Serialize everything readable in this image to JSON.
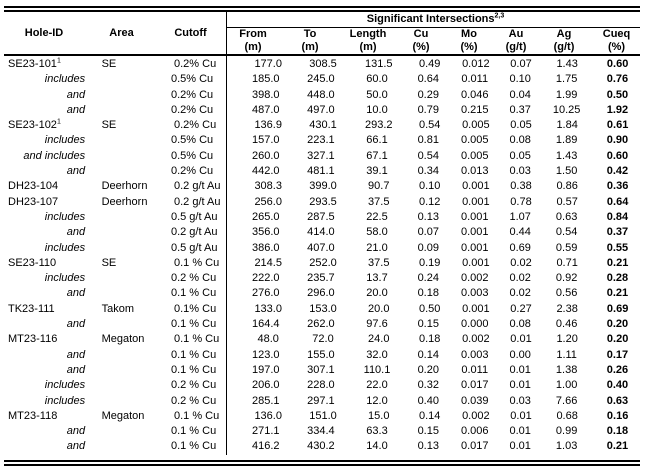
{
  "colors": {
    "text": "#000000",
    "background": "#ffffff",
    "rule": "#000000"
  },
  "table": {
    "spanner_title": "Significant Intersections",
    "spanner_superscript": "2,3",
    "left_columns": [
      "Hole-ID",
      "Area",
      "Cutoff"
    ],
    "right_columns": [
      {
        "label": "From",
        "unit": "(m)"
      },
      {
        "label": "To",
        "unit": "(m)"
      },
      {
        "label": "Length",
        "unit": "(m)"
      },
      {
        "label": "Cu",
        "unit": "(%)"
      },
      {
        "label": "Mo",
        "unit": "(%)"
      },
      {
        "label": "Au",
        "unit": "(g/t)"
      },
      {
        "label": "Ag",
        "unit": "(g/t)"
      },
      {
        "label": "Cueq",
        "unit": "(%)"
      }
    ],
    "rows": [
      {
        "hole_id": "SE23-101",
        "hole_sup": "1",
        "qualifier": "",
        "area": "SE",
        "cutoff": "0.2% Cu",
        "from": "177.0",
        "to": "308.5",
        "length": "131.5",
        "cu": "0.49",
        "mo": "0.012",
        "au": "0.07",
        "ag": "1.43",
        "cueq": "0.60"
      },
      {
        "hole_id": "",
        "hole_sup": "",
        "qualifier": "includes",
        "area": "",
        "cutoff": "0.5% Cu",
        "from": "185.0",
        "to": "245.0",
        "length": "60.0",
        "cu": "0.64",
        "mo": "0.011",
        "au": "0.10",
        "ag": "1.75",
        "cueq": "0.76"
      },
      {
        "hole_id": "",
        "hole_sup": "",
        "qualifier": "and",
        "area": "",
        "cutoff": "0.2% Cu",
        "from": "398.0",
        "to": "448.0",
        "length": "50.0",
        "cu": "0.29",
        "mo": "0.046",
        "au": "0.04",
        "ag": "1.99",
        "cueq": "0.50"
      },
      {
        "hole_id": "",
        "hole_sup": "",
        "qualifier": "and",
        "area": "",
        "cutoff": "0.2% Cu",
        "from": "487.0",
        "to": "497.0",
        "length": "10.0",
        "cu": "0.79",
        "mo": "0.215",
        "au": "0.37",
        "ag": "10.25",
        "cueq": "1.92"
      },
      {
        "hole_id": "SE23-102",
        "hole_sup": "1",
        "qualifier": "",
        "area": "SE",
        "cutoff": "0.2% Cu",
        "from": "136.9",
        "to": "430.1",
        "length": "293.2",
        "cu": "0.54",
        "mo": "0.005",
        "au": "0.05",
        "ag": "1.84",
        "cueq": "0.61"
      },
      {
        "hole_id": "",
        "hole_sup": "",
        "qualifier": "includes",
        "area": "",
        "cutoff": "0.5% Cu",
        "from": "157.0",
        "to": "223.1",
        "length": "66.1",
        "cu": "0.81",
        "mo": "0.005",
        "au": "0.08",
        "ag": "1.89",
        "cueq": "0.90"
      },
      {
        "hole_id": "",
        "hole_sup": "",
        "qualifier": "and includes",
        "area": "",
        "cutoff": "0.5% Cu",
        "from": "260.0",
        "to": "327.1",
        "length": "67.1",
        "cu": "0.54",
        "mo": "0.005",
        "au": "0.05",
        "ag": "1.43",
        "cueq": "0.60"
      },
      {
        "hole_id": "",
        "hole_sup": "",
        "qualifier": "and",
        "area": "",
        "cutoff": "0.2% Cu",
        "from": "442.0",
        "to": "481.1",
        "length": "39.1",
        "cu": "0.34",
        "mo": "0.013",
        "au": "0.03",
        "ag": "1.50",
        "cueq": "0.42"
      },
      {
        "hole_id": "DH23-104",
        "hole_sup": "",
        "qualifier": "",
        "area": "Deerhorn",
        "cutoff": "0.2 g/t Au",
        "from": "308.3",
        "to": "399.0",
        "length": "90.7",
        "cu": "0.10",
        "mo": "0.001",
        "au": "0.38",
        "ag": "0.86",
        "cueq": "0.36"
      },
      {
        "hole_id": "DH23-107",
        "hole_sup": "",
        "qualifier": "",
        "area": "Deerhorn",
        "cutoff": "0.2 g/t Au",
        "from": "256.0",
        "to": "293.5",
        "length": "37.5",
        "cu": "0.12",
        "mo": "0.001",
        "au": "0.78",
        "ag": "0.57",
        "cueq": "0.64"
      },
      {
        "hole_id": "",
        "hole_sup": "",
        "qualifier": "includes",
        "area": "",
        "cutoff": "0.5 g/t Au",
        "from": "265.0",
        "to": "287.5",
        "length": "22.5",
        "cu": "0.13",
        "mo": "0.001",
        "au": "1.07",
        "ag": "0.63",
        "cueq": "0.84"
      },
      {
        "hole_id": "",
        "hole_sup": "",
        "qualifier": "and",
        "area": "",
        "cutoff": "0.2 g/t Au",
        "from": "356.0",
        "to": "414.0",
        "length": "58.0",
        "cu": "0.07",
        "mo": "0.001",
        "au": "0.44",
        "ag": "0.54",
        "cueq": "0.37"
      },
      {
        "hole_id": "",
        "hole_sup": "",
        "qualifier": "includes",
        "area": "",
        "cutoff": "0.5 g/t Au",
        "from": "386.0",
        "to": "407.0",
        "length": "21.0",
        "cu": "0.09",
        "mo": "0.001",
        "au": "0.69",
        "ag": "0.59",
        "cueq": "0.55"
      },
      {
        "hole_id": "SE23-110",
        "hole_sup": "",
        "qualifier": "",
        "area": "SE",
        "cutoff": "0.1 % Cu",
        "from": "214.5",
        "to": "252.0",
        "length": "37.5",
        "cu": "0.19",
        "mo": "0.001",
        "au": "0.02",
        "ag": "0.71",
        "cueq": "0.21"
      },
      {
        "hole_id": "",
        "hole_sup": "",
        "qualifier": "includes",
        "area": "",
        "cutoff": "0.2 % Cu",
        "from": "222.0",
        "to": "235.7",
        "length": "13.7",
        "cu": "0.24",
        "mo": "0.002",
        "au": "0.02",
        "ag": "0.92",
        "cueq": "0.28"
      },
      {
        "hole_id": "",
        "hole_sup": "",
        "qualifier": "and",
        "area": "",
        "cutoff": "0.1 % Cu",
        "from": "276.0",
        "to": "296.0",
        "length": "20.0",
        "cu": "0.18",
        "mo": "0.003",
        "au": "0.02",
        "ag": "0.56",
        "cueq": "0.21"
      },
      {
        "hole_id": "TK23-111",
        "hole_sup": "",
        "qualifier": "",
        "area": "Takom",
        "cutoff": "0.1% Cu",
        "from": "133.0",
        "to": "153.0",
        "length": "20.0",
        "cu": "0.50",
        "mo": "0.001",
        "au": "0.27",
        "ag": "2.38",
        "cueq": "0.69"
      },
      {
        "hole_id": "",
        "hole_sup": "",
        "qualifier": "and",
        "area": "",
        "cutoff": "0.1 % Cu",
        "from": "164.4",
        "to": "262.0",
        "length": "97.6",
        "cu": "0.15",
        "mo": "0.000",
        "au": "0.08",
        "ag": "0.46",
        "cueq": "0.20"
      },
      {
        "hole_id": "MT23-116",
        "hole_sup": "",
        "qualifier": "",
        "area": "Megaton",
        "cutoff": "0.1 % Cu",
        "from": "48.0",
        "to": "72.0",
        "length": "24.0",
        "cu": "0.18",
        "mo": "0.002",
        "au": "0.01",
        "ag": "1.20",
        "cueq": "0.20"
      },
      {
        "hole_id": "",
        "hole_sup": "",
        "qualifier": "and",
        "area": "",
        "cutoff": "0.1 % Cu",
        "from": "123.0",
        "to": "155.0",
        "length": "32.0",
        "cu": "0.14",
        "mo": "0.003",
        "au": "0.00",
        "ag": "1.11",
        "cueq": "0.17"
      },
      {
        "hole_id": "",
        "hole_sup": "",
        "qualifier": "and",
        "area": "",
        "cutoff": "0.1 % Cu",
        "from": "197.0",
        "to": "307.1",
        "length": "110.1",
        "cu": "0.20",
        "mo": "0.011",
        "au": "0.01",
        "ag": "1.38",
        "cueq": "0.26"
      },
      {
        "hole_id": "",
        "hole_sup": "",
        "qualifier": "includes",
        "area": "",
        "cutoff": "0.2 % Cu",
        "from": "206.0",
        "to": "228.0",
        "length": "22.0",
        "cu": "0.32",
        "mo": "0.017",
        "au": "0.01",
        "ag": "1.00",
        "cueq": "0.40"
      },
      {
        "hole_id": "",
        "hole_sup": "",
        "qualifier": "includes",
        "area": "",
        "cutoff": "0.2 % Cu",
        "from": "285.1",
        "to": "297.1",
        "length": "12.0",
        "cu": "0.40",
        "mo": "0.039",
        "au": "0.03",
        "ag": "7.66",
        "cueq": "0.63"
      },
      {
        "hole_id": "MT23-118",
        "hole_sup": "",
        "qualifier": "",
        "area": "Megaton",
        "cutoff": "0.1 % Cu",
        "from": "136.0",
        "to": "151.0",
        "length": "15.0",
        "cu": "0.14",
        "mo": "0.002",
        "au": "0.01",
        "ag": "0.68",
        "cueq": "0.16"
      },
      {
        "hole_id": "",
        "hole_sup": "",
        "qualifier": "and",
        "area": "",
        "cutoff": "0.1 % Cu",
        "from": "271.1",
        "to": "334.4",
        "length": "63.3",
        "cu": "0.15",
        "mo": "0.006",
        "au": "0.01",
        "ag": "0.99",
        "cueq": "0.18"
      },
      {
        "hole_id": "",
        "hole_sup": "",
        "qualifier": "and",
        "area": "",
        "cutoff": "0.1 % Cu",
        "from": "416.2",
        "to": "430.2",
        "length": "14.0",
        "cu": "0.13",
        "mo": "0.017",
        "au": "0.01",
        "ag": "1.03",
        "cueq": "0.21"
      }
    ]
  }
}
